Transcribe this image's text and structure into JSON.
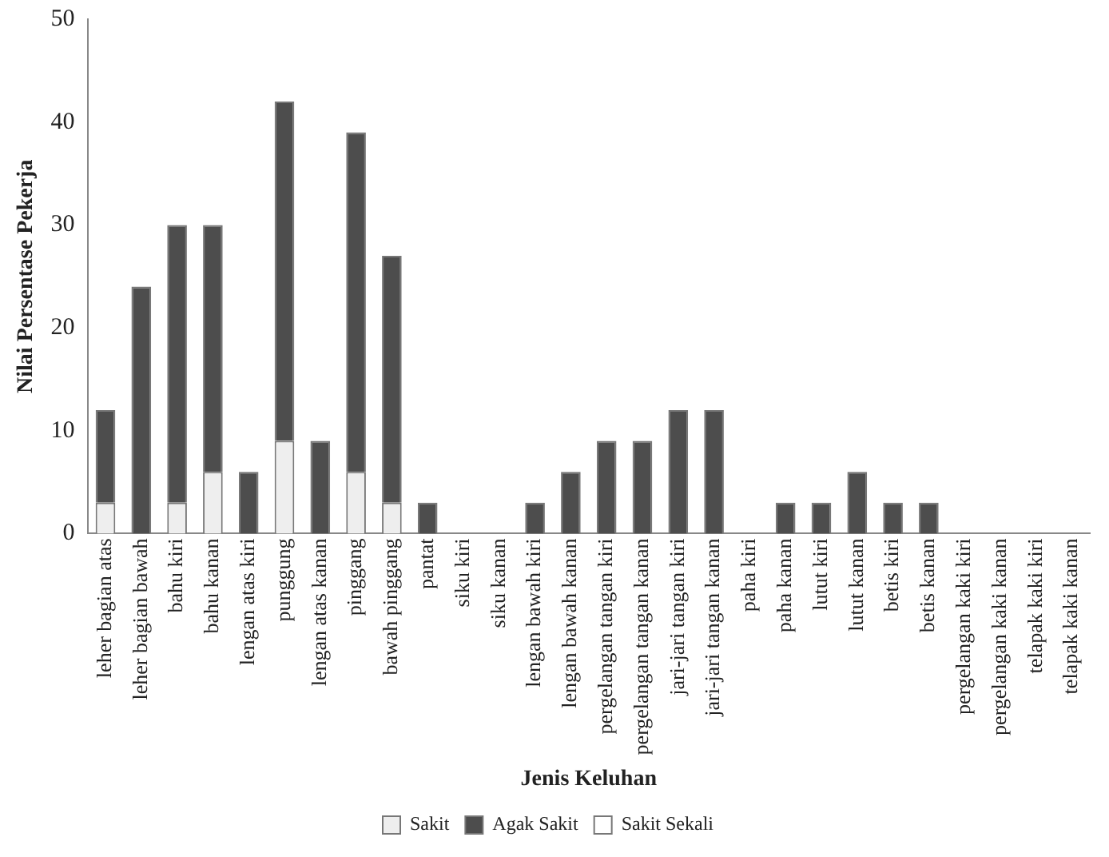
{
  "chart_data": {
    "type": "bar",
    "stacked": true,
    "xlabel": "Jenis Keluhan",
    "ylabel": "Nilai Persentase Pekerja",
    "categories": [
      "leher bagian atas",
      "leher bagian bawah",
      "bahu kiri",
      "bahu kanan",
      "lengan atas kiri",
      "punggung",
      "lengan atas kanan",
      "pinggang",
      "bawah pinggang",
      "pantat",
      "siku kiri",
      "siku kanan",
      "lengan bawah kiri",
      "lengan bawah kanan",
      "pergelangan tangan kiri",
      "pergelangan tangan kanan",
      "jari-jari tangan kiri",
      "jari-jari tangan kanan",
      "paha kiri",
      "paha kanan",
      "lutut kiri",
      "lutut kanan",
      "betis kiri",
      "betis kanan",
      "pergelangan kaki kiri",
      "pergelangan kaki kanan",
      "telapak kaki kiri",
      "telapak kaki kanan"
    ],
    "series": [
      {
        "name": "Sakit",
        "color": "#eeeeee",
        "values": [
          3,
          0,
          3,
          6,
          0,
          9,
          0,
          6,
          3,
          0,
          0,
          0,
          0,
          0,
          0,
          0,
          0,
          0,
          0,
          0,
          0,
          0,
          0,
          0,
          0,
          0,
          0,
          0
        ]
      },
      {
        "name": "Agak Sakit",
        "color": "#4d4d4d",
        "values": [
          9,
          24,
          27,
          24,
          6,
          33,
          9,
          33,
          24,
          3,
          0,
          0,
          3,
          6,
          9,
          9,
          12,
          12,
          0,
          3,
          3,
          6,
          3,
          3,
          0,
          0,
          0,
          0
        ]
      },
      {
        "name": "Sakit Sekali",
        "color": "#ffffff",
        "values": [
          0,
          0,
          0,
          0,
          0,
          0,
          0,
          0,
          0,
          0,
          0,
          0,
          0,
          0,
          0,
          0,
          0,
          0,
          0,
          0,
          0,
          0,
          0,
          0,
          0,
          0,
          0,
          0
        ]
      }
    ],
    "ylim": [
      0,
      50
    ],
    "yticks": [
      0,
      10,
      20,
      30,
      40,
      50
    ],
    "grid": false,
    "legend": "bottom"
  }
}
